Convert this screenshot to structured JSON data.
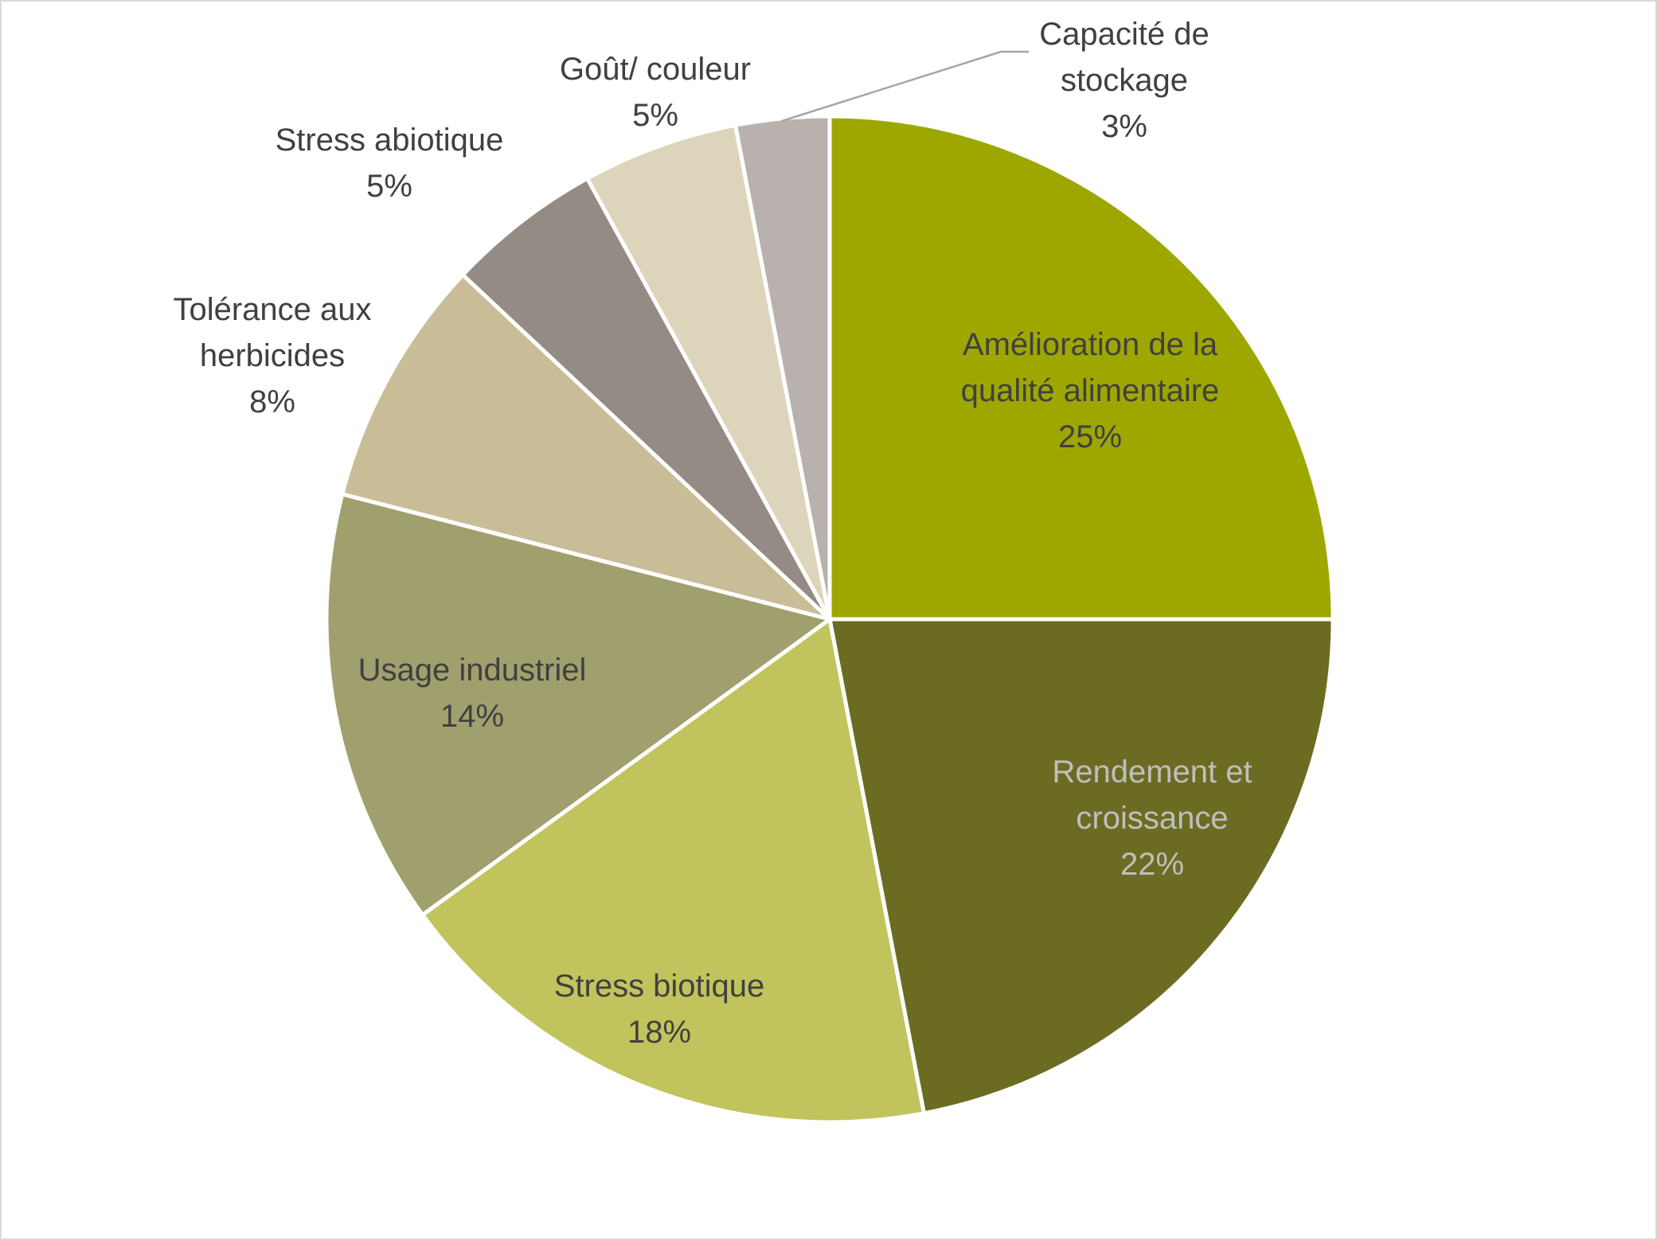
{
  "chart_data": {
    "type": "pie",
    "title": "",
    "unit": "%",
    "slices": [
      {
        "label_lines": [
          "Amélioration de la",
          "qualité alimentaire"
        ],
        "value": 25,
        "value_label": "25%",
        "color": "#9ea700",
        "text_color": "#404040"
      },
      {
        "label_lines": [
          "Rendement et",
          "croissance"
        ],
        "value": 22,
        "value_label": "22%",
        "color": "#6b6c22",
        "text_color": "#bfbfbf"
      },
      {
        "label_lines": [
          "Stress biotique"
        ],
        "value": 18,
        "value_label": "18%",
        "color": "#c1c45c",
        "text_color": "#404040"
      },
      {
        "label_lines": [
          "Usage industriel"
        ],
        "value": 14,
        "value_label": "14%",
        "color": "#a0a06e",
        "text_color": "#404040"
      },
      {
        "label_lines": [
          "Tolérance aux",
          "herbicides"
        ],
        "value": 8,
        "value_label": "8%",
        "color": "#c9bd97",
        "text_color": "#404040"
      },
      {
        "label_lines": [
          "Stress abiotique"
        ],
        "value": 5,
        "value_label": "5%",
        "color": "#938b84",
        "text_color": "#404040"
      },
      {
        "label_lines": [
          "Goût/ couleur"
        ],
        "value": 5,
        "value_label": "5%",
        "color": "#ddd5bb",
        "text_color": "#404040"
      },
      {
        "label_lines": [
          "Capacité de",
          "stockage"
        ],
        "value": 3,
        "value_label": "3%",
        "color": "#b9b1ad",
        "text_color": "#404040"
      }
    ],
    "legend": "none",
    "label_style": "category name and percentage"
  }
}
